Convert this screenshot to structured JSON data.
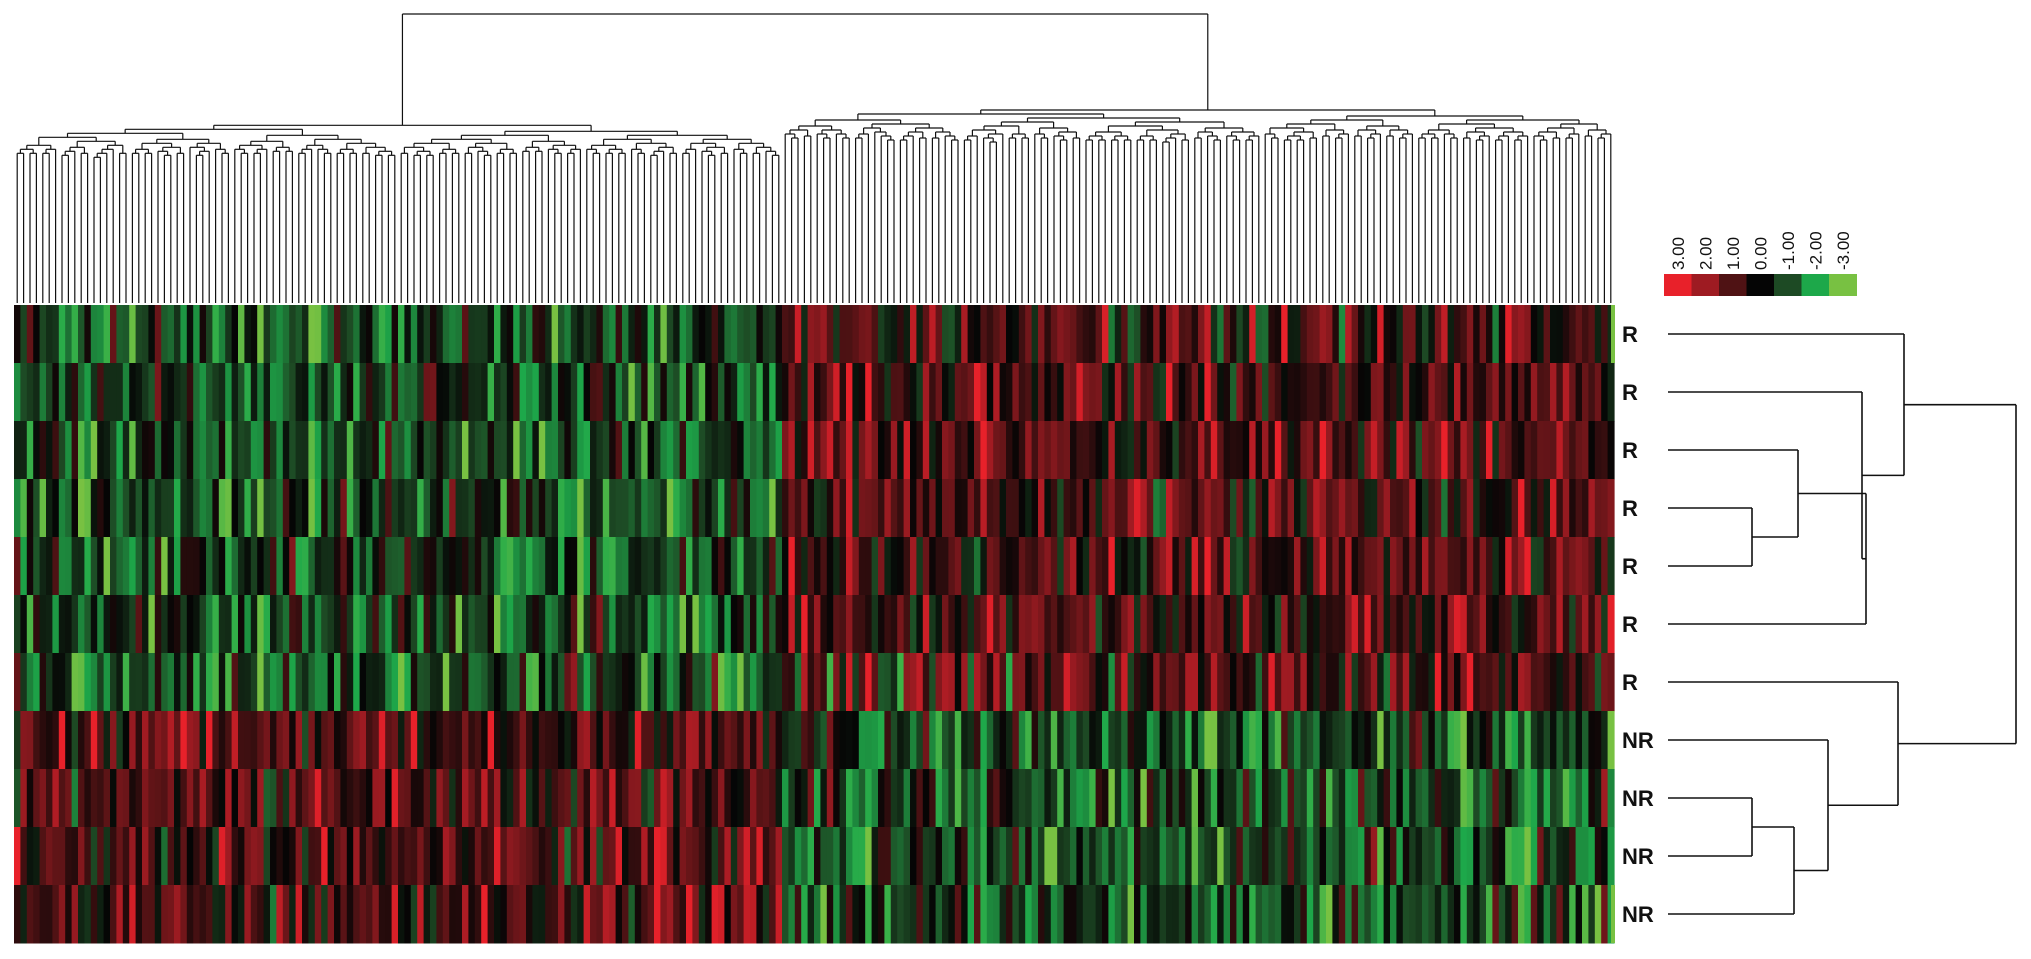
{
  "chart_data": {
    "type": "heatmap",
    "title": "",
    "xlabel": "",
    "ylabel": "",
    "rows": [
      "R",
      "R",
      "R",
      "R",
      "R",
      "R",
      "R",
      "NR",
      "NR",
      "NR",
      "NR"
    ],
    "n_columns": 250,
    "value_range": [
      -3,
      3
    ],
    "color_scale": {
      "ticks": [
        "3.00",
        "2.00",
        "1.00",
        "0.00",
        "-1.00",
        "-2.00",
        "-3.00"
      ],
      "values": [
        3,
        2,
        1,
        0,
        -1,
        -2,
        -3
      ],
      "colors": [
        "#e8212a",
        "#9e1b22",
        "#4f1214",
        "#050505",
        "#1d4a24",
        "#1da84a",
        "#78c142"
      ]
    },
    "column_clusters": [
      {
        "from": 0,
        "to": 120,
        "R_mean": -0.9,
        "NR_mean": 0.9
      },
      {
        "from": 120,
        "to": 250,
        "R_mean": 0.9,
        "NR_mean": -0.9
      }
    ],
    "row_dendrogram": "((R,(R,((R,R),R))),(R,(NR,((NR,NR),NR))))",
    "column_dendrogram": "hierarchical, two main clusters",
    "grid": false,
    "legend_position": "top-right"
  },
  "figure": {
    "heatmap_bg": "#050505",
    "line_color": "#111111",
    "label_color": "#111111"
  }
}
